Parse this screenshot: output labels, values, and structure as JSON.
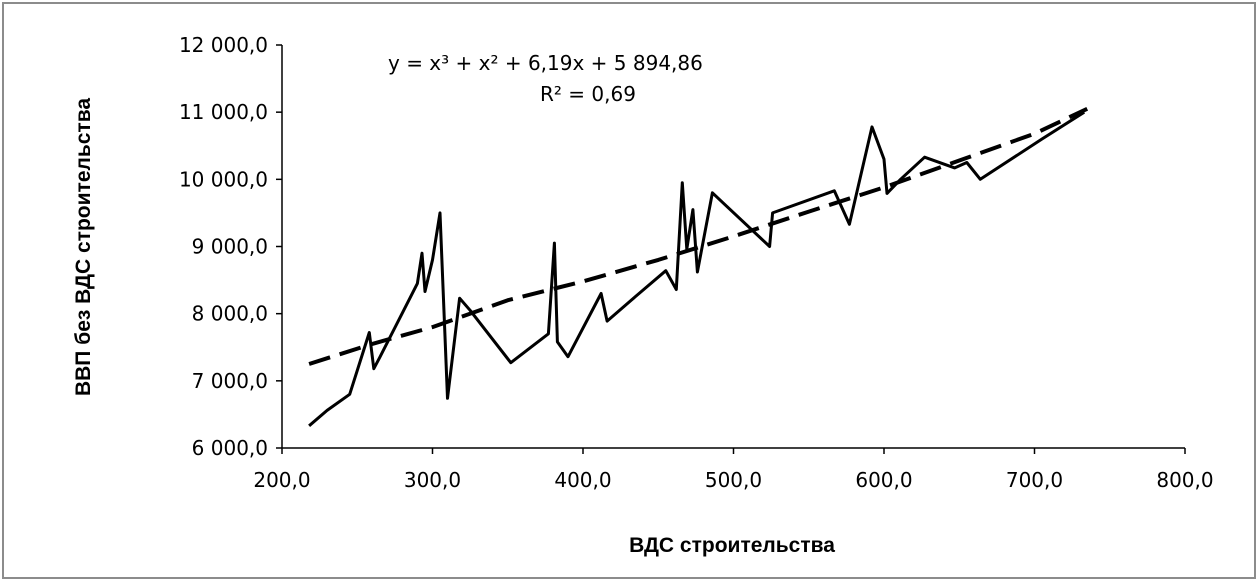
{
  "chart_data": {
    "type": "line",
    "title": "",
    "xlabel": "ВДС строительства",
    "ylabel": "ВВП без ВДС строительства",
    "xlim": [
      200,
      800
    ],
    "ylim": [
      6000,
      12000
    ],
    "x_ticks": [
      "200,0",
      "300,0",
      "400,0",
      "500,0",
      "600,0",
      "700,0",
      "800,0"
    ],
    "y_ticks": [
      "6 000,0",
      "7 000,0",
      "8 000,0",
      "9 000,0",
      "10 000,0",
      "11 000,0",
      "12 000,0"
    ],
    "grid": false,
    "legend": "none",
    "series": [
      {
        "style": "solid",
        "color": "#000000",
        "points": [
          [
            218,
            6330
          ],
          [
            230,
            6560
          ],
          [
            245,
            6800
          ],
          [
            258,
            7720
          ],
          [
            261,
            7180
          ],
          [
            265,
            7350
          ],
          [
            290,
            8450
          ],
          [
            293,
            8900
          ],
          [
            295,
            8330
          ],
          [
            300,
            8800
          ],
          [
            305,
            9500
          ],
          [
            310,
            6740
          ],
          [
            318,
            8230
          ],
          [
            325,
            8050
          ],
          [
            352,
            7270
          ],
          [
            377,
            7700
          ],
          [
            381,
            9050
          ],
          [
            383,
            7580
          ],
          [
            390,
            7360
          ],
          [
            412,
            8300
          ],
          [
            416,
            7890
          ],
          [
            432,
            8200
          ],
          [
            455,
            8640
          ],
          [
            462,
            8360
          ],
          [
            466,
            9950
          ],
          [
            469,
            8960
          ],
          [
            473,
            9550
          ],
          [
            476,
            8620
          ],
          [
            486,
            9800
          ],
          [
            493,
            9650
          ],
          [
            524,
            9000
          ],
          [
            526,
            9500
          ],
          [
            567,
            9830
          ],
          [
            577,
            9330
          ],
          [
            592,
            10780
          ],
          [
            600,
            10300
          ],
          [
            602,
            9790
          ],
          [
            611,
            10000
          ],
          [
            627,
            10330
          ],
          [
            647,
            10170
          ],
          [
            655,
            10250
          ],
          [
            664,
            10000
          ],
          [
            705,
            10600
          ],
          [
            733,
            11000
          ]
        ]
      },
      {
        "style": "dashed",
        "color": "#000000",
        "points": [
          [
            218,
            7250
          ],
          [
            260,
            7550
          ],
          [
            300,
            7800
          ],
          [
            350,
            8200
          ],
          [
            400,
            8480
          ],
          [
            450,
            8800
          ],
          [
            500,
            9150
          ],
          [
            550,
            9520
          ],
          [
            600,
            9880
          ],
          [
            650,
            10280
          ],
          [
            700,
            10680
          ],
          [
            735,
            11050
          ]
        ]
      }
    ],
    "annotation": {
      "equation": "y = x³ + x² + 6,19x + 5 894,86",
      "r_squared": "R² = 0,69"
    }
  }
}
